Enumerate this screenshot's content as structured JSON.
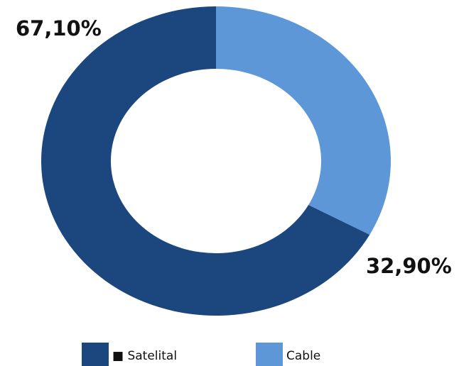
{
  "chart_data": {
    "type": "pie",
    "variant": "donut",
    "categories": [
      "Satelital",
      "Cable"
    ],
    "values": [
      67.1,
      32.9
    ],
    "labels": [
      "67,10%",
      "32,90%"
    ],
    "colors": [
      "#1b467e",
      "#5e97d8"
    ],
    "legend": {
      "placement": "bottom",
      "entries": [
        "■ Satelital",
        "Cable"
      ]
    }
  }
}
